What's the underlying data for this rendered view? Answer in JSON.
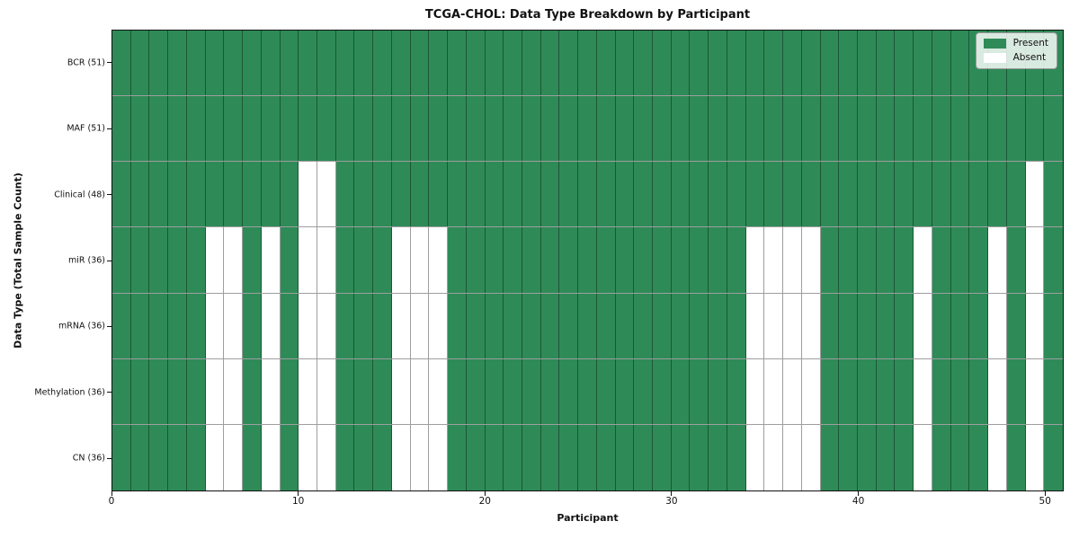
{
  "chart_data": {
    "type": "heatmap",
    "title": "TCGA-CHOL: Data Type Breakdown by Participant",
    "xlabel": "Participant",
    "ylabel": "Data Type (Total Sample Count)",
    "x_ticks": [
      0,
      10,
      20,
      30,
      40,
      50
    ],
    "x_range": [
      0,
      51
    ],
    "n_participants": 51,
    "n_rows": 7,
    "grid": true,
    "colors": {
      "present": "#2e8b57",
      "absent": "#ffffff",
      "grid_line": "rgba(0,0,0,0.38)",
      "spine": "#111111"
    },
    "legend": {
      "position": "upper right",
      "entries": [
        {
          "label": "Present",
          "color": "#2e8b57"
        },
        {
          "label": "Absent",
          "color": "#ffffff"
        }
      ]
    },
    "rows": [
      {
        "label": "BCR (51)",
        "data_type": "BCR",
        "total_samples": 51,
        "absent_participants": []
      },
      {
        "label": "MAF (51)",
        "data_type": "MAF",
        "total_samples": 51,
        "absent_participants": []
      },
      {
        "label": "Clinical (48)",
        "data_type": "Clinical",
        "total_samples": 48,
        "absent_participants": [
          10,
          11,
          49
        ]
      },
      {
        "label": "miR (36)",
        "data_type": "miR",
        "total_samples": 36,
        "absent_participants": [
          5,
          6,
          8,
          10,
          11,
          15,
          16,
          17,
          34,
          35,
          36,
          37,
          43,
          47,
          49
        ]
      },
      {
        "label": "mRNA (36)",
        "data_type": "mRNA",
        "total_samples": 36,
        "absent_participants": [
          5,
          6,
          8,
          10,
          11,
          15,
          16,
          17,
          34,
          35,
          36,
          37,
          43,
          47,
          49
        ]
      },
      {
        "label": "Methylation (36)",
        "data_type": "Methylation",
        "total_samples": 36,
        "absent_participants": [
          5,
          6,
          8,
          10,
          11,
          15,
          16,
          17,
          34,
          35,
          36,
          37,
          43,
          47,
          49
        ]
      },
      {
        "label": "CN (36)",
        "data_type": "CN",
        "total_samples": 36,
        "absent_participants": [
          5,
          6,
          8,
          10,
          11,
          15,
          16,
          17,
          34,
          35,
          36,
          37,
          43,
          47,
          49
        ]
      }
    ]
  }
}
